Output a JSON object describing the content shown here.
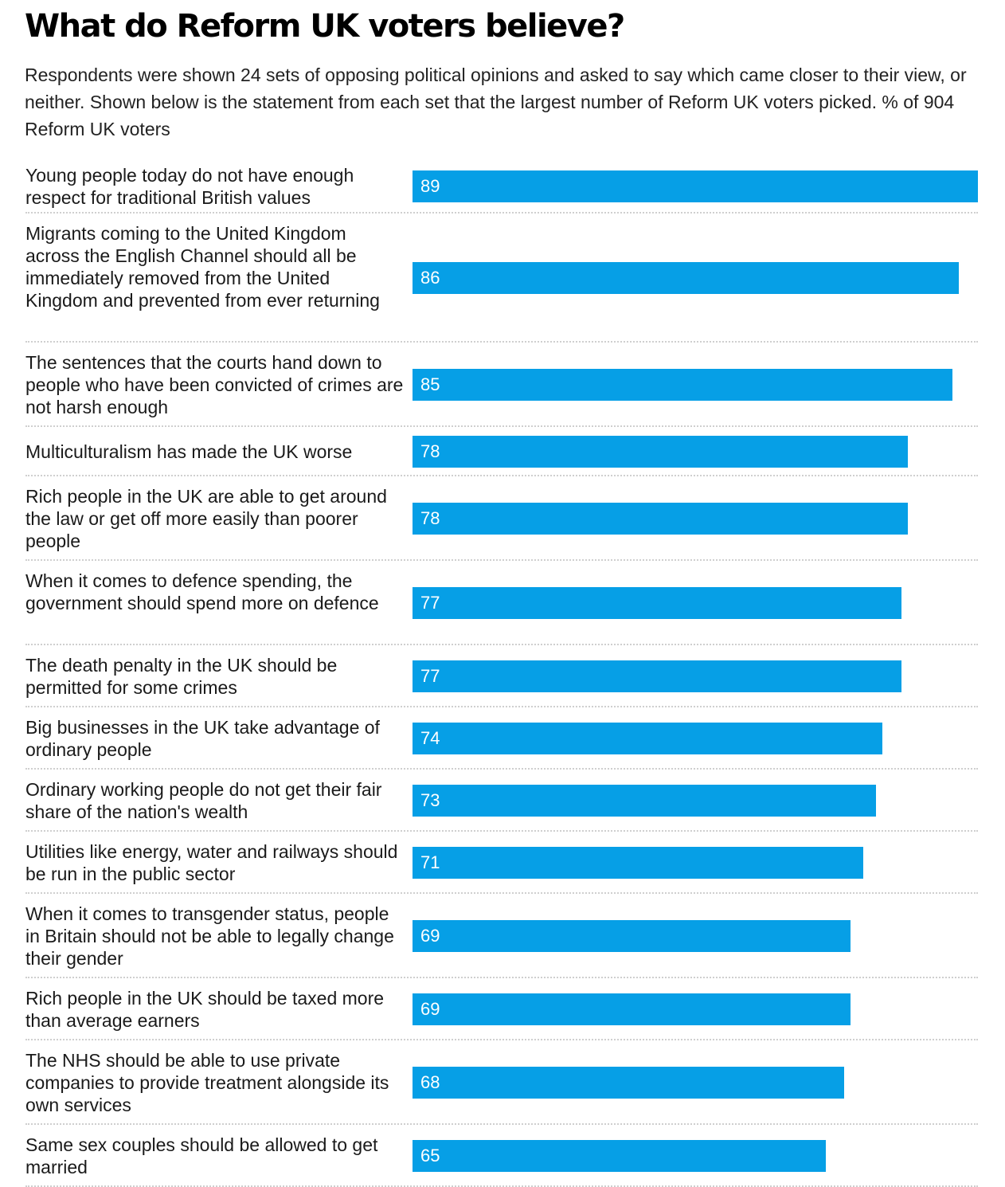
{
  "title": "What do Reform UK voters believe?",
  "subtitle": "Respondents were shown 24 sets of opposing political opinions and asked to say which came closer to their view, or neither. Shown below is the statement from each set that the largest number of Reform UK voters picked. % of 904 Reform UK voters",
  "colors": {
    "bar": "#069fe6",
    "bar_label": "#ffffff",
    "divider": "#cfcfcf"
  },
  "chart_data": {
    "type": "bar",
    "orientation": "horizontal",
    "title": "What do Reform UK voters believe?",
    "xlim": [
      0,
      89
    ],
    "grid": false,
    "categories": [
      "Young people today do not have enough respect for traditional British values",
      "Migrants coming to the United Kingdom across the English Channel should all be immediately removed from the United Kingdom and prevented from ever returning",
      "The sentences that the courts hand down to people who have been convicted of crimes are not harsh enough",
      "Multiculturalism has made the UK worse",
      "Rich people in the UK are able to get around the law or get off more easily than poorer people",
      "When it comes to defence spending, the government should spend more on defence",
      "The death penalty in the UK should be permitted for some crimes",
      "Big businesses in the UK take advantage of ordinary people",
      "Ordinary working people do not get their fair share of the nation's wealth",
      "Utilities like energy, water and railways should be run in the public sector",
      "When it comes to transgender status, people in Britain should not be able to legally change their gender",
      "Rich people in the UK should be taxed more than average earners",
      "The NHS should be able to use private companies to provide treatment alongside its own services",
      "Same sex couples should be allowed to get married"
    ],
    "values": [
      89,
      86,
      85,
      78,
      78,
      77,
      77,
      74,
      73,
      71,
      69,
      69,
      68,
      65
    ]
  }
}
